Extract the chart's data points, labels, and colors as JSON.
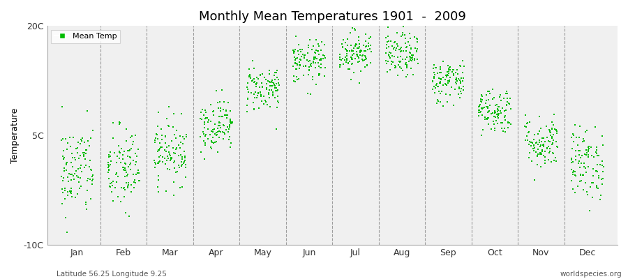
{
  "title": "Monthly Mean Temperatures 1901  -  2009",
  "ylabel": "Temperature",
  "footer_left": "Latitude 56.25 Longitude 9.25",
  "footer_right": "worldspecies.org",
  "legend_label": "Mean Temp",
  "dot_color": "#00bb00",
  "background_color": "#f0f0f0",
  "outer_background": "#ffffff",
  "ylim": [
    -10,
    20
  ],
  "yticks": [
    -10,
    5,
    20
  ],
  "ytick_labels": [
    "-10C",
    "5C",
    "20C"
  ],
  "months": [
    "Jan",
    "Feb",
    "Mar",
    "Apr",
    "May",
    "Jun",
    "Jul",
    "Aug",
    "Sep",
    "Oct",
    "Nov",
    "Dec"
  ],
  "monthly_means": [
    0.2,
    0.3,
    2.8,
    6.5,
    11.5,
    15.0,
    16.5,
    16.0,
    12.5,
    8.5,
    4.0,
    1.2
  ],
  "monthly_stds": [
    3.2,
    3.0,
    2.2,
    1.8,
    1.6,
    1.5,
    1.5,
    1.5,
    1.5,
    1.6,
    1.8,
    2.5
  ],
  "n_years": 109,
  "seed": 42,
  "dot_size": 4,
  "title_fontsize": 13,
  "axis_fontsize": 9,
  "footer_fontsize": 7.5
}
